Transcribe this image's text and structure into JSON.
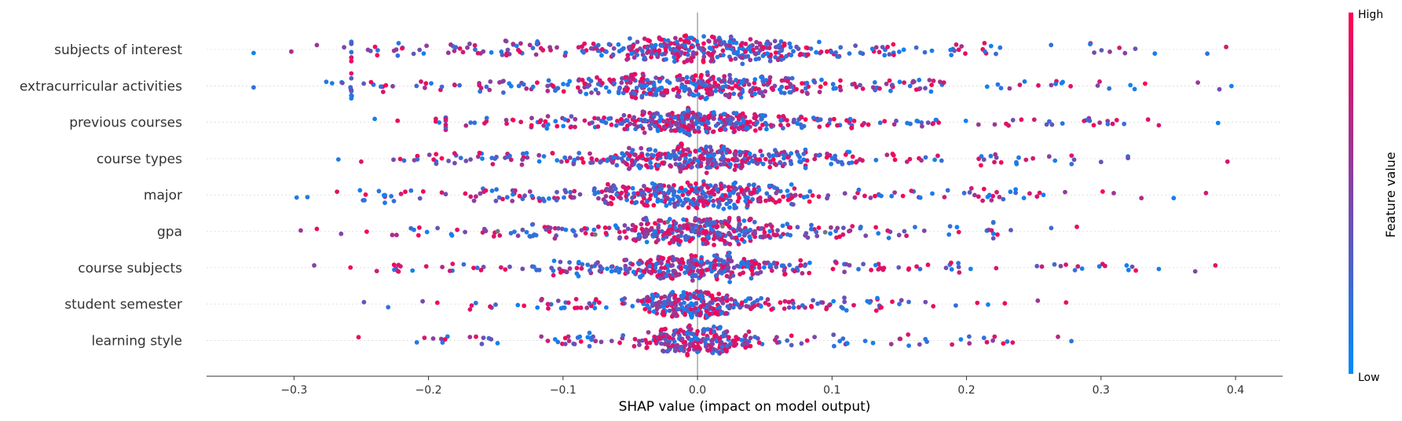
{
  "chart_data": {
    "type": "scatter",
    "subtype": "shap-beeswarm",
    "title": "",
    "xlabel": "SHAP value (impact on model output)",
    "ylabel": "",
    "xlim": [
      -0.365,
      0.435
    ],
    "xticks": [
      -0.3,
      -0.2,
      -0.1,
      0.0,
      0.1,
      0.2,
      0.3,
      0.4
    ],
    "xtick_labels": [
      "−0.3",
      "−0.2",
      "−0.1",
      "0.0",
      "0.1",
      "0.2",
      "0.3",
      "0.4"
    ],
    "zero_line": true,
    "row_gridlines": "dotted",
    "colors": {
      "low": "#008bfb",
      "high": "#ff0052",
      "missing": "#777777",
      "zero_line": "#999999"
    },
    "colorbar": {
      "title": "Feature value",
      "high_label": "High",
      "low_label": "Low",
      "placement": "right"
    },
    "features": [
      {
        "name": "subjects of interest",
        "range": [
          -0.33,
          0.393
        ],
        "extremes": [
          -0.33,
          -0.302,
          -0.283,
          -0.245,
          0.34,
          0.379,
          0.393
        ],
        "bulk_spread": 0.13,
        "density": 1.0
      },
      {
        "name": "extracurricular activities",
        "range": [
          -0.33,
          0.397
        ],
        "extremes": [
          -0.33,
          -0.276,
          -0.258,
          0.325,
          0.372,
          0.388,
          0.397
        ],
        "bulk_spread": 0.13,
        "density": 1.0
      },
      {
        "name": "previous courses",
        "range": [
          -0.24,
          0.387
        ],
        "extremes": [
          -0.24,
          -0.223,
          0.305,
          0.335,
          0.343,
          0.387
        ],
        "bulk_spread": 0.1,
        "density": 0.95
      },
      {
        "name": "course types",
        "range": [
          -0.267,
          0.394
        ],
        "extremes": [
          -0.267,
          -0.25,
          -0.226,
          0.28,
          0.3,
          0.32,
          0.394
        ],
        "bulk_spread": 0.1,
        "density": 0.95
      },
      {
        "name": "major",
        "range": [
          -0.298,
          0.378
        ],
        "extremes": [
          -0.298,
          -0.29,
          -0.268,
          0.33,
          0.354,
          0.378
        ],
        "bulk_spread": 0.11,
        "density": 0.95
      },
      {
        "name": "gpa",
        "range": [
          -0.295,
          0.282
        ],
        "extremes": [
          -0.295,
          -0.283,
          -0.265,
          0.263,
          0.282
        ],
        "bulk_spread": 0.09,
        "density": 0.9
      },
      {
        "name": "course subjects",
        "range": [
          -0.285,
          0.385
        ],
        "extremes": [
          -0.285,
          -0.258,
          0.303,
          0.343,
          0.37,
          0.385
        ],
        "bulk_spread": 0.1,
        "density": 0.9
      },
      {
        "name": "student semester",
        "range": [
          -0.248,
          0.274
        ],
        "extremes": [
          -0.248,
          -0.23,
          0.253,
          0.274
        ],
        "bulk_spread": 0.07,
        "density": 0.75
      },
      {
        "name": "learning style",
        "range": [
          -0.252,
          0.278
        ],
        "extremes": [
          -0.252,
          -0.203,
          0.213,
          0.268,
          0.278
        ],
        "bulk_spread": 0.06,
        "density": 0.7
      }
    ]
  }
}
